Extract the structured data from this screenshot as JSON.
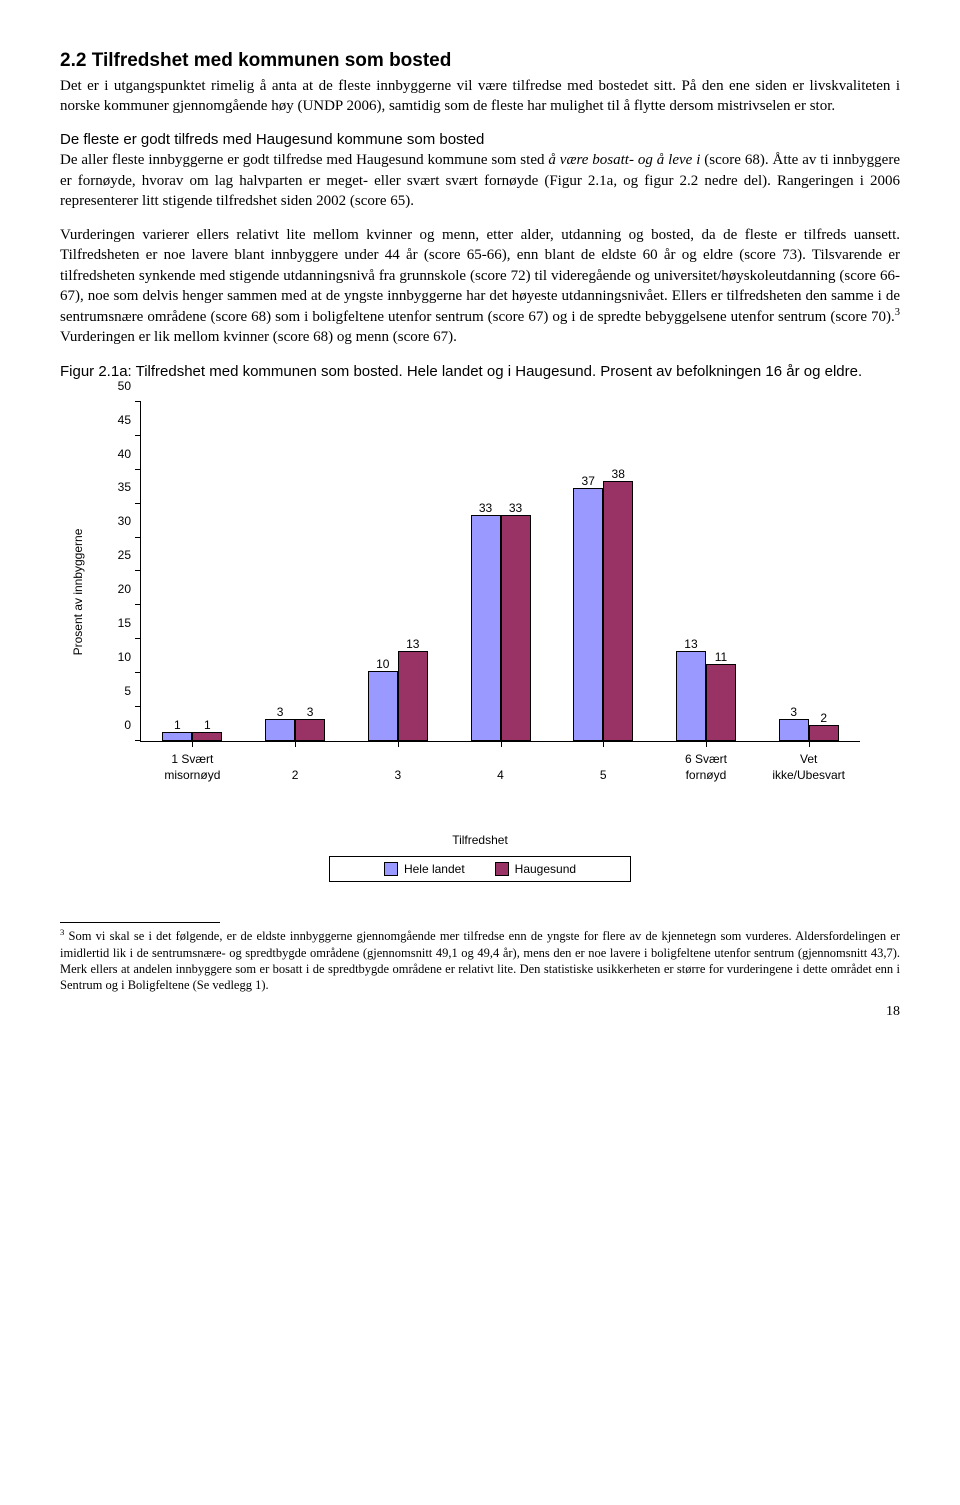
{
  "heading": "2.2 Tilfredshet med kommunen som bosted",
  "p1": "Det er i utgangspunktet rimelig å anta at de fleste innbyggerne vil være tilfredse med bostedet sitt. På den ene siden er livskvaliteten i norske kommuner gjennomgående høy (UNDP 2006), samtidig som de fleste har mulighet til å flytte dersom mistrivselen er stor.",
  "sub_heading": "De fleste er godt tilfreds med Haugesund kommune som bosted",
  "p2a": "De aller fleste innbyggerne er godt tilfredse med Haugesund kommune som sted ",
  "p2_italic": "å være bosatt- og å leve i",
  "p2b": " (score 68). Åtte av ti innbyggere er fornøyde, hvorav om lag halvparten er meget- eller svært svært fornøyde (Figur 2.1a, og figur 2.2 nedre del). Rangeringen i 2006 representerer litt stigende tilfredshet siden 2002 (score 65).",
  "p3a": "Vurderingen varierer ellers relativt lite mellom kvinner og menn, etter alder, utdanning og bosted, da de fleste er tilfreds uansett. Tilfredsheten er noe lavere blant innbyggere under 44 år (score 65-66), enn blant de eldste 60 år og eldre (score 73). Tilsvarende er tilfredsheten synkende med stigende utdanningsnivå fra grunnskole (score 72) til videregående og universitet/høyskoleutdanning (score 66-67), noe som delvis henger sammen med at de yngste innbyggerne har det høyeste utdanningsnivået. Ellers er tilfredsheten den samme i de sentrumsnære områdene (score 68) som i boligfeltene utenfor sentrum (score 67) og i de spredte bebyggelsene utenfor sentrum (score 70).",
  "p3_sup": "3",
  "p3b": " Vurderingen er lik mellom kvinner (score 68) og menn (score 67).",
  "figure_caption": "Figur 2.1a: Tilfredshet med kommunen som bosted. Hele landet og i Haugesund. Prosent av befolkningen 16 år og eldre.",
  "chart": {
    "y_label": "Prosent av innbyggerne",
    "x_label": "Tilfredshet",
    "y_max": 50,
    "y_ticks": [
      0,
      5,
      10,
      15,
      20,
      25,
      30,
      35,
      40,
      45,
      50
    ],
    "categories": [
      {
        "label": "1 Svært\nmisornøyd",
        "a": 1,
        "b": 1
      },
      {
        "label": "2",
        "a": 3,
        "b": 3
      },
      {
        "label": "3",
        "a": 10,
        "b": 13
      },
      {
        "label": "4",
        "a": 33,
        "b": 33
      },
      {
        "label": "5",
        "a": 37,
        "b": 38
      },
      {
        "label": "6 Svært\nfornøyd",
        "a": 13,
        "b": 11
      },
      {
        "label": "Vet\nikke/Ubesvart",
        "a": 3,
        "b": 2
      }
    ],
    "series_a": {
      "name": "Hele landet",
      "color": "#9999ff"
    },
    "series_b": {
      "name": "Haugesund",
      "color": "#993366"
    }
  },
  "footnote_num": "3",
  "footnote": " Som vi skal se i det følgende, er de eldste innbyggerne gjennomgående mer tilfredse enn de yngste for flere av de kjennetegn som vurderes. Aldersfordelingen er imidlertid lik i de sentrumsnære- og spredtbygde områdene (gjennomsnitt 49,1 og 49,4 år), mens den er noe lavere i boligfeltene utenfor sentrum (gjennomsnitt 43,7). Merk ellers at andelen innbyggere som er bosatt i de spredtbygde områdene er relativt lite. Den statistiske usikkerheten er større for vurderingene i dette området enn i Sentrum og i Boligfeltene (Se vedlegg 1).",
  "page_number": "18"
}
